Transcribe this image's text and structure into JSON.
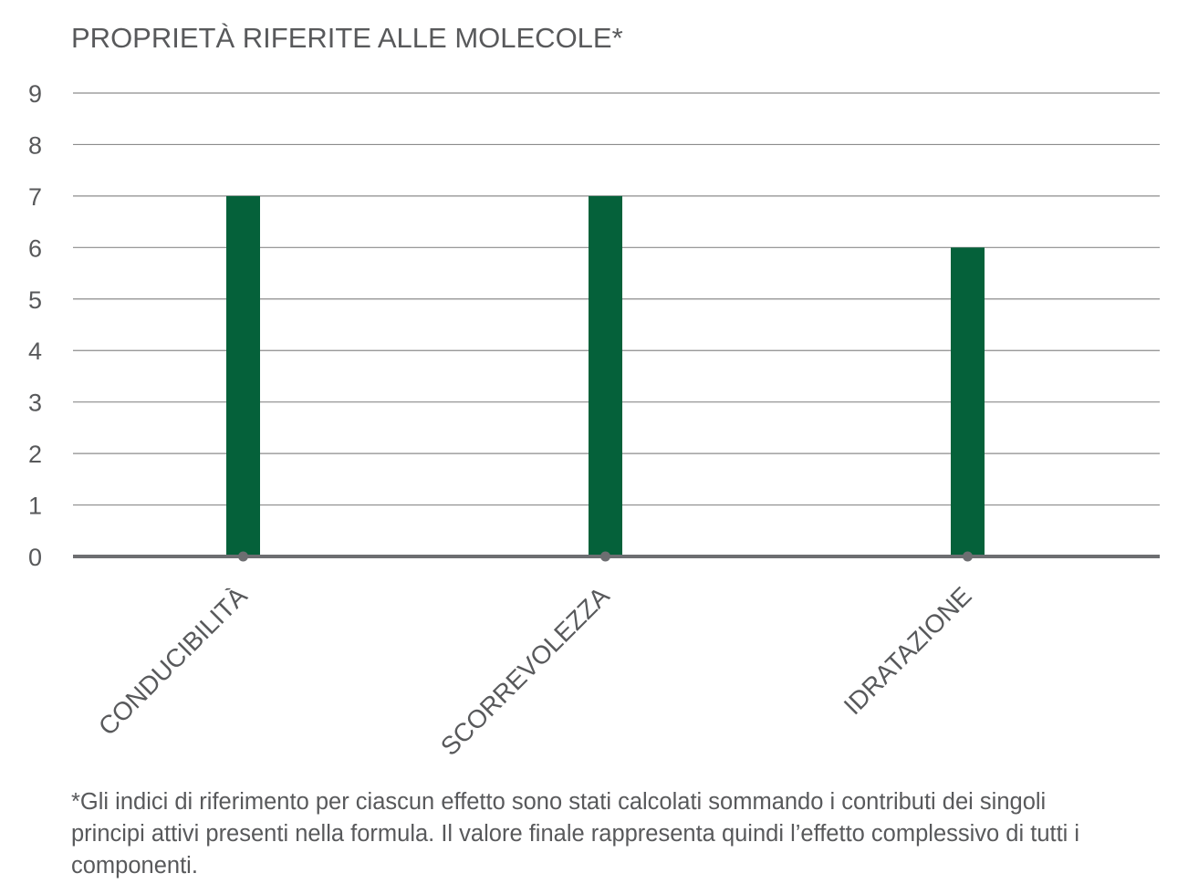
{
  "chart_data": {
    "type": "bar",
    "title": "PROPRIETÀ RIFERITE ALLE MOLECOLE*",
    "categories": [
      "CONDUCIBILITÀ",
      "SCORREVOLEZZA",
      "IDRATAZIONE"
    ],
    "values": [
      7,
      7,
      6
    ],
    "yticks": [
      0,
      1,
      2,
      3,
      4,
      5,
      6,
      7,
      8,
      9
    ],
    "ylim": [
      0,
      9
    ],
    "xlabel": "",
    "ylabel": "",
    "grid": true,
    "legend": "none",
    "bar_color": "#05613a",
    "axis_color": "#6d6e71"
  },
  "footnote": "*Gli indici di riferimento per ciascun effetto sono stati calcolati sommando i contributi dei singoli principi attivi presenti nella formula. Il valore finale rappresenta quindi l’effetto complessivo di tutti i componenti."
}
